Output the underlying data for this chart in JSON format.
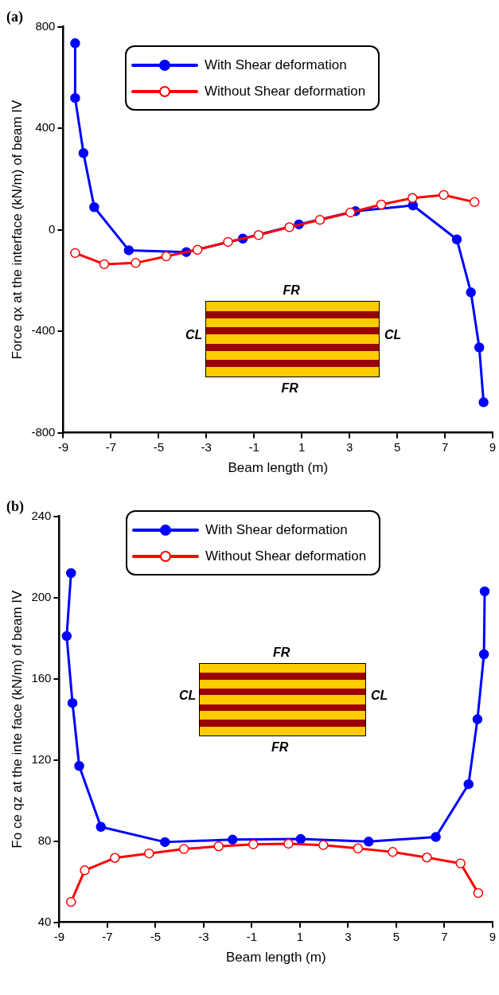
{
  "chart_data": [
    {
      "type": "line",
      "title": "(a)",
      "xlabel": "Beam length (m)",
      "ylabel": "Force qx at the interface (kN/m) of beam IV",
      "xlim": [
        -9,
        9
      ],
      "xticks": [
        -9,
        -7,
        -5,
        -3,
        -1,
        1,
        3,
        5,
        7,
        9
      ],
      "ylim": [
        -800,
        800
      ],
      "yticks": [
        -800,
        -400,
        0,
        400,
        800
      ],
      "grid": false,
      "legend": "top left",
      "marker": "circle",
      "annotations": [
        "FR",
        "FR",
        "CL",
        "CL"
      ],
      "series": [
        {
          "name": "With Shear deformation",
          "color": "#0000ff",
          "x": [
            -8.5,
            -8.5,
            -8.15,
            -7.7,
            -6.25,
            -3.84,
            -1.47,
            0.88,
            3.25,
            5.66,
            7.5,
            8.09,
            8.44,
            8.62
          ],
          "values": [
            735,
            519,
            302,
            89,
            -81,
            -88,
            -35,
            21,
            73,
            96,
            -38,
            -247,
            -464,
            -680
          ]
        },
        {
          "name": "Without Shear deformation",
          "color": "#ff0000",
          "x": [
            -8.5,
            -7.28,
            -5.96,
            -4.68,
            -3.37,
            -2.09,
            -0.81,
            0.48,
            1.76,
            3.04,
            4.33,
            5.64,
            6.95,
            8.24
          ],
          "values": [
            -92,
            -136,
            -131,
            -105,
            -79,
            -48,
            -21,
            10,
            39,
            68,
            99,
            125,
            137,
            109
          ]
        }
      ]
    },
    {
      "type": "line",
      "title": "(b)",
      "xlabel": "Beam length (m)",
      "ylabel": "Fo ce qz at the inte face (kN/m) of beam IV",
      "xlim": [
        -9,
        9
      ],
      "xticks": [
        -9,
        -7,
        -5,
        -3,
        -1,
        1,
        3,
        5,
        7,
        9
      ],
      "ylim": [
        40,
        240
      ],
      "yticks": [
        40,
        80,
        120,
        160,
        200,
        240
      ],
      "grid": false,
      "legend": "top left",
      "marker": "circle",
      "annotations": [
        "FR",
        "FR",
        "CL",
        "CL"
      ],
      "series": [
        {
          "name": "With Shear deformation",
          "color": "#0000ff",
          "x": [
            -8.51,
            -8.69,
            -8.45,
            -8.17,
            -7.27,
            -4.61,
            -1.8,
            1.03,
            3.85,
            6.64,
            8.0,
            8.37,
            8.64,
            8.67
          ],
          "values": [
            212,
            181,
            148,
            117,
            87,
            79.5,
            80.7,
            81,
            79.7,
            82,
            108,
            140,
            172,
            203
          ]
        },
        {
          "name": "Without Shear deformation",
          "color": "#ff0000",
          "x": [
            -8.51,
            -7.94,
            -6.69,
            -5.27,
            -3.82,
            -2.38,
            -0.94,
            0.52,
            1.97,
            3.41,
            4.85,
            6.27,
            7.67,
            8.4
          ],
          "values": [
            50,
            65.6,
            71.7,
            73.9,
            76.1,
            77.4,
            78.4,
            78.7,
            78,
            76.4,
            74.6,
            71.9,
            69,
            54.4
          ]
        }
      ]
    }
  ]
}
